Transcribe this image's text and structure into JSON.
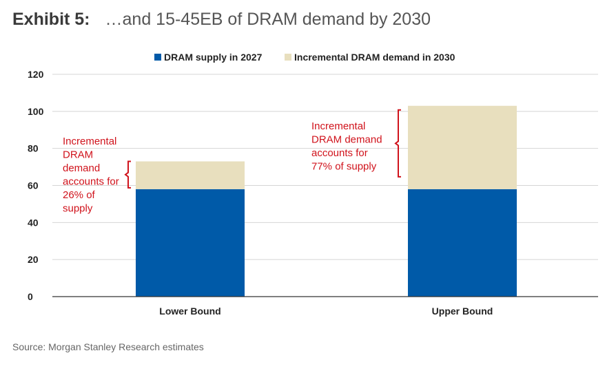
{
  "header": {
    "exhibit": "Exhibit 5:",
    "title": "…and 15-45EB of DRAM demand by 2030"
  },
  "source": "Source: Morgan Stanley Research estimates",
  "colors": {
    "supply": "#005aa8",
    "demand": "#e8dfbe",
    "annotation": "#d0121b",
    "grid": "#d4d4d4",
    "axis": "#333333",
    "text": "#222222"
  },
  "annotations": [
    {
      "category": "Lower Bound",
      "lines": [
        "Incremental",
        "DRAM",
        "demand",
        "accounts for",
        "26% of",
        "supply"
      ]
    },
    {
      "category": "Upper Bound",
      "lines": [
        "Incremental",
        "DRAM demand",
        "accounts for",
        "77% of supply"
      ]
    }
  ],
  "chart_data": {
    "type": "bar",
    "stacked": true,
    "categories": [
      "Lower Bound",
      "Upper Bound"
    ],
    "series": [
      {
        "name": "DRAM supply in 2027",
        "values": [
          58,
          58
        ]
      },
      {
        "name": "Incremental DRAM demand in 2030",
        "values": [
          15,
          45
        ]
      }
    ],
    "ylim": [
      0,
      120
    ],
    "yticks": [
      0,
      20,
      40,
      60,
      80,
      100,
      120
    ],
    "grid": true,
    "legend": "top-center",
    "xlabel": "",
    "ylabel": ""
  }
}
